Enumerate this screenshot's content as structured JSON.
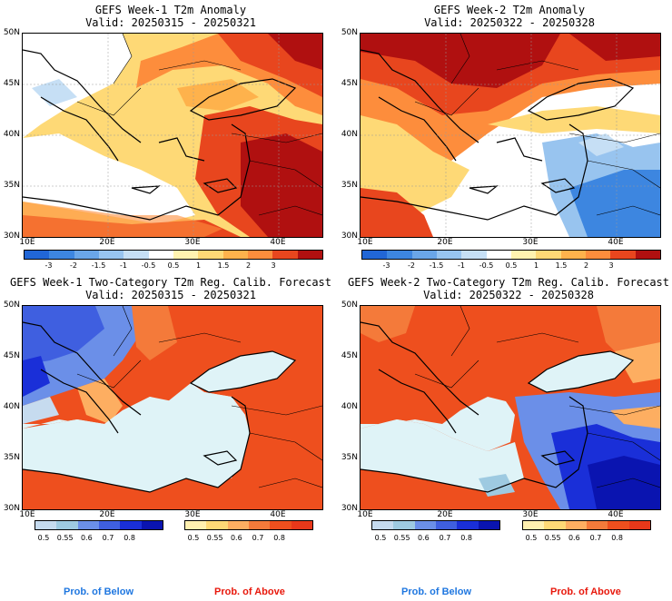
{
  "titles": {
    "p1": "GEFS Week-1 T2m Anomaly",
    "p1_valid": "Valid: 20250315 - 20250321",
    "p2": "GEFS Week-2 T2m Anomaly",
    "p2_valid": "Valid: 20250322 - 20250328",
    "p3": "GEFS Week-1 Two-Category T2m Reg. Calib. Forecast",
    "p3_valid": "Valid: 20250315 - 20250321",
    "p4": "GEFS Week-2 Two-Category T2m Reg. Calib. Forecast",
    "p4_valid": "Valid: 20250322 - 20250328"
  },
  "axes": {
    "lat_labels": [
      "50N",
      "45N",
      "40N",
      "35N",
      "30N"
    ],
    "lon_labels": [
      "10E",
      "20E",
      "30E",
      "40E"
    ]
  },
  "anomaly_colorbar": {
    "labels": [
      "-3",
      "-2",
      "-1.5",
      "-1",
      "-0.5",
      "0.5",
      "1",
      "1.5",
      "2",
      "3"
    ],
    "colors": [
      "#2166d6",
      "#3d86e0",
      "#6aa6e8",
      "#98c4ef",
      "#c6dff5",
      "#ffffff",
      "#fff3b0",
      "#fed976",
      "#feb24c",
      "#fd8d3c",
      "#e8461e",
      "#b01010"
    ]
  },
  "prob_below_colorbar": {
    "labels": [
      "0.5",
      "0.55",
      "0.6",
      "0.7",
      "0.8"
    ],
    "colors": [
      "#c6dbef",
      "#9ecae1",
      "#6b8fe8",
      "#3f5fe0",
      "#1a2fd8",
      "#0a14b0"
    ]
  },
  "prob_above_colorbar": {
    "labels": [
      "0.5",
      "0.55",
      "0.6",
      "0.7",
      "0.8"
    ],
    "colors": [
      "#fff0b0",
      "#fed976",
      "#fdae61",
      "#f47a3a",
      "#ee4f1e",
      "#e8381a"
    ]
  },
  "legend": {
    "below": "Prob. of Below",
    "above": "Prob. of Above",
    "below_color": "#1f77e0",
    "above_color": "#e8180c"
  },
  "colors": {
    "sea": "#dff3f7",
    "coast": "#000000"
  }
}
